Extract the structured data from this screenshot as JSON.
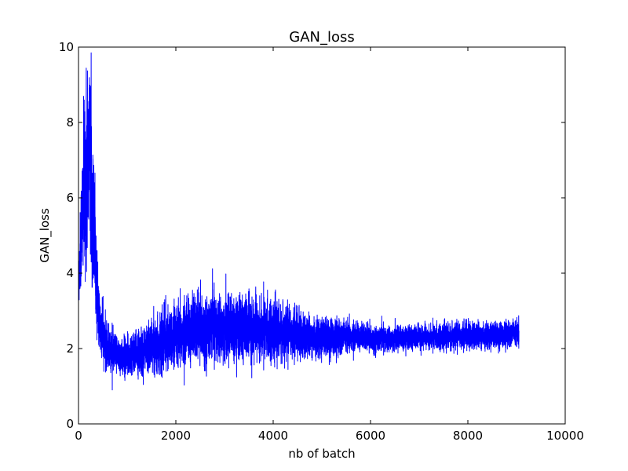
{
  "chart_data": {
    "type": "line",
    "title": "GAN_loss",
    "xlabel": "nb of batch",
    "ylabel": "GAN_loss",
    "xlim": [
      0,
      10000
    ],
    "ylim": [
      0,
      10
    ],
    "x_ticks": [
      0,
      2000,
      4000,
      6000,
      8000,
      10000
    ],
    "y_ticks": [
      0,
      2,
      4,
      6,
      8,
      10
    ],
    "x_tick_labels": [
      "0",
      "2000",
      "4000",
      "6000",
      "8000",
      "10000"
    ],
    "y_tick_labels": [
      "0",
      "2",
      "4",
      "6",
      "8",
      "10"
    ],
    "grid": false,
    "legend": "none",
    "series": [
      {
        "color": "#0000ff",
        "x": [
          0,
          50,
          100,
          150,
          200,
          230,
          260,
          300,
          350,
          400,
          450,
          500,
          600,
          700,
          800,
          900,
          1000,
          1100,
          1200,
          1400,
          1600,
          1800,
          2000,
          2200,
          2400,
          2600,
          2800,
          3000,
          3200,
          3400,
          3600,
          3800,
          4000,
          4200,
          4400,
          4600,
          4800,
          5000,
          5200,
          5400,
          5600,
          5800,
          6000,
          6500,
          7000,
          7500,
          8000,
          8500,
          9000,
          9050
        ],
        "y": [
          3.5,
          5.0,
          6.0,
          6.5,
          7.0,
          7.5,
          6.5,
          5.5,
          4.5,
          3.0,
          2.5,
          2.3,
          2.0,
          1.9,
          1.8,
          1.8,
          1.8,
          1.85,
          1.9,
          2.0,
          2.1,
          2.2,
          2.3,
          2.4,
          2.5,
          2.5,
          2.55,
          2.5,
          2.5,
          2.55,
          2.5,
          2.5,
          2.45,
          2.4,
          2.4,
          2.35,
          2.3,
          2.3,
          2.3,
          2.3,
          2.3,
          2.3,
          2.25,
          2.25,
          2.3,
          2.3,
          2.35,
          2.35,
          2.4,
          2.35
        ],
        "spread": [
          0.5,
          1.2,
          1.8,
          2.0,
          2.2,
          2.3,
          2.0,
          1.6,
          1.2,
          0.8,
          0.6,
          0.55,
          0.5,
          0.5,
          0.45,
          0.45,
          0.45,
          0.45,
          0.5,
          0.55,
          0.6,
          0.65,
          0.7,
          0.75,
          0.75,
          0.75,
          0.75,
          0.75,
          0.75,
          0.75,
          0.75,
          0.7,
          0.65,
          0.6,
          0.55,
          0.5,
          0.45,
          0.45,
          0.45,
          0.4,
          0.35,
          0.3,
          0.3,
          0.28,
          0.28,
          0.28,
          0.3,
          0.3,
          0.3,
          0.3
        ],
        "n_points": 9050
      }
    ]
  }
}
